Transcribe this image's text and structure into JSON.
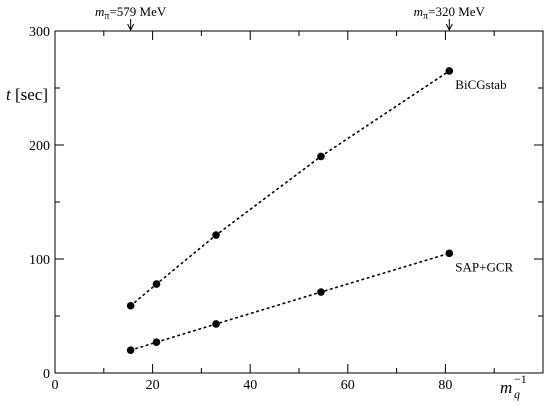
{
  "chart_data": {
    "type": "scatter",
    "title": "",
    "xlabel": "m_q^{-1}",
    "ylabel": "t [sec]",
    "xlim": [
      0,
      100
    ],
    "ylim": [
      0,
      300
    ],
    "x_ticks": [
      0,
      20,
      40,
      60,
      80
    ],
    "y_ticks": [
      0,
      100,
      200,
      300
    ],
    "x_tick_labels": [
      "0",
      "20",
      "40",
      "60",
      "80"
    ],
    "y_tick_labels": [
      "0",
      "100",
      "200",
      "300"
    ],
    "grid": false,
    "legend": "none (series labelled inline)",
    "series": [
      {
        "name": "BiCGstab",
        "x": [
          15.5,
          20.8,
          33.0,
          54.5,
          80.8
        ],
        "y": [
          59,
          78,
          121,
          190,
          265
        ],
        "line_style": "dotted"
      },
      {
        "name": "SAP+GCR",
        "x": [
          15.5,
          20.8,
          33.0,
          54.5,
          80.8
        ],
        "y": [
          20,
          27,
          43,
          71,
          105
        ],
        "line_style": "dotted"
      }
    ],
    "annotations": [
      {
        "symbol": "m",
        "subscript": "π",
        "value": "=579 MeV",
        "x": 15.5
      },
      {
        "symbol": "m",
        "subscript": "π",
        "value": "=320 MeV",
        "x": 80.8
      }
    ]
  },
  "labels": {
    "ylabel_italic": "t",
    "ylabel_rest": " [sec]",
    "xlabel_base": "m",
    "xlabel_sub": "q",
    "xlabel_sup": "−1"
  }
}
